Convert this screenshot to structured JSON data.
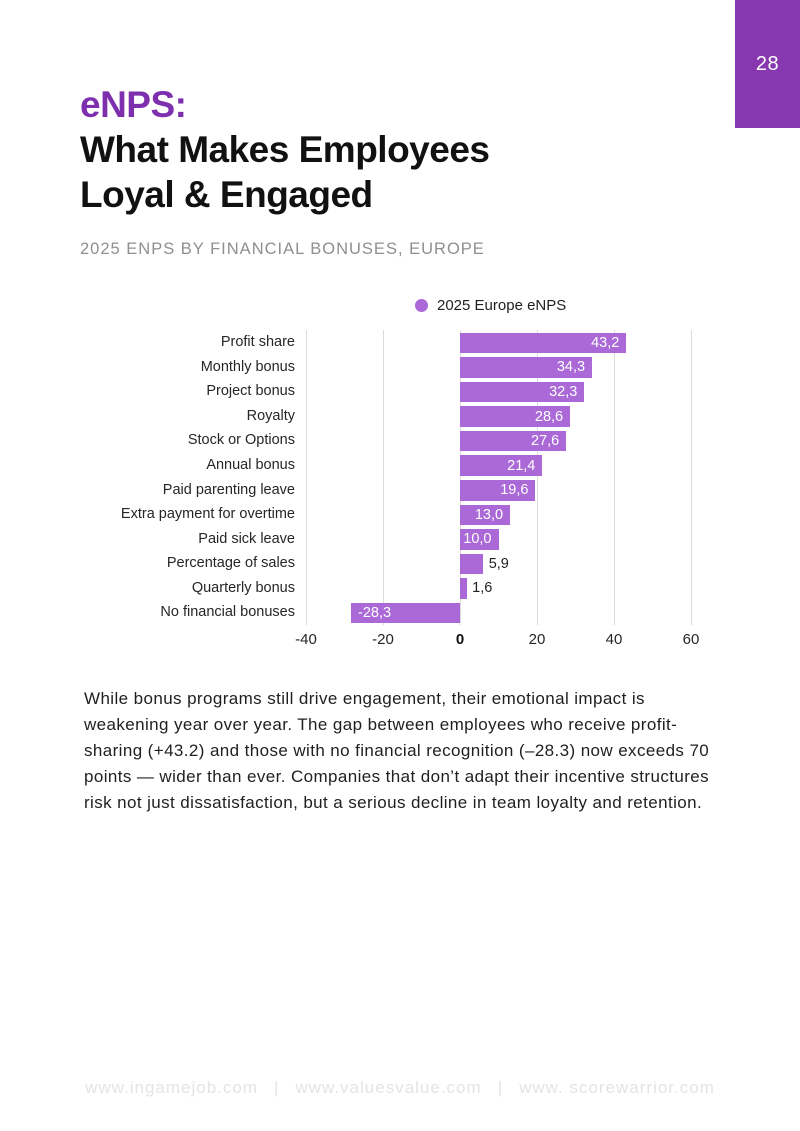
{
  "page": {
    "number": "28"
  },
  "header": {
    "title_accent": "eNPS:",
    "title_lines": [
      "What Makes Employees",
      "Loyal & Engaged"
    ],
    "subtitle": "2025 ENPS BY FINANCIAL BONUSES, EUROPE"
  },
  "chart_data": {
    "type": "bar",
    "orientation": "horizontal",
    "legend": [
      {
        "label": "2025 Europe eNPS",
        "color": "#aa69d7"
      }
    ],
    "legend_position": "top",
    "categories": [
      "Profit share",
      "Monthly bonus",
      "Project bonus",
      "Royalty",
      "Stock or Options",
      "Annual bonus",
      "Paid parenting leave",
      "Extra payment for overtime",
      "Paid sick leave",
      "Percentage of sales",
      "Quarterly bonus",
      "No financial bonuses"
    ],
    "values": [
      43.2,
      34.3,
      32.3,
      28.6,
      27.6,
      21.4,
      19.6,
      13.0,
      10.0,
      5.9,
      1.6,
      -28.3
    ],
    "value_labels": [
      "43,2",
      "34,3",
      "32,3",
      "28,6",
      "27,6",
      "21,4",
      "19,6",
      "13,0",
      "10,0",
      "5,9",
      "1,6",
      "-28,3"
    ],
    "x_ticks": [
      -40,
      -20,
      0,
      20,
      40,
      60
    ],
    "xlim": [
      -40,
      60
    ],
    "grid": "vertical",
    "bar_color": "#aa69d7"
  },
  "body_text": "While bonus programs still drive engagement, their emotional impact is weakening year over year. The gap between employees who receive profit-sharing (+43.2) and those with no financial recognition (–28.3) now exceeds 70 points — wider than ever. Companies that don’t adapt their incentive structures risk not just dissatisfaction, but a serious decline in team loyalty and retention.",
  "footer": {
    "links": [
      "www.ingamejob.com",
      "www.valuesvalue.com",
      "www. scorewarrior.com"
    ],
    "separator": "|"
  },
  "colors": {
    "accent_purple": "#7d2fae",
    "corner_purple": "#8737af",
    "bar_purple": "#aa69d7",
    "subtitle_gray": "#8f8f8f",
    "footer_gray": "#e4e4e4",
    "gridline_gray": "#dcdcdc",
    "text_dark": "#1f1f1f"
  }
}
